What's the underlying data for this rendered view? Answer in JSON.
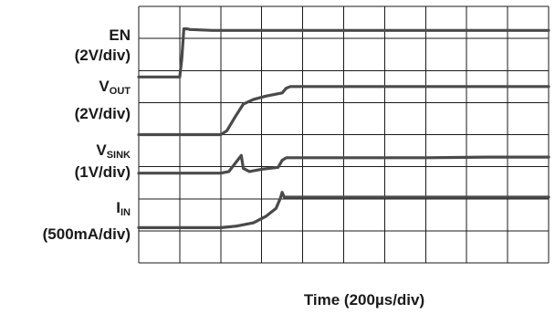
{
  "chart_data": {
    "type": "line",
    "xlabel": "Time (200µs/div)",
    "x_unit_per_div": "200µs",
    "divisions": {
      "x": 10,
      "y": 8
    },
    "grid": true,
    "series": [
      {
        "name_main": "EN",
        "name_sub": "",
        "scale": "(2V/div)",
        "points": [
          [
            0,
            0.0
          ],
          [
            1.0,
            0.0
          ],
          [
            1.05,
            0.55
          ],
          [
            1.1,
            1.5
          ],
          [
            1.18,
            1.5
          ],
          [
            1.25,
            1.48
          ],
          [
            1.8,
            1.45
          ],
          [
            10,
            1.45
          ]
        ]
      },
      {
        "name_main": "V",
        "name_sub": "OUT",
        "scale": "(2V/div)",
        "points": [
          [
            0,
            0.0
          ],
          [
            2.0,
            0.0
          ],
          [
            2.15,
            0.12
          ],
          [
            2.35,
            0.55
          ],
          [
            2.55,
            0.95
          ],
          [
            2.8,
            1.1
          ],
          [
            3.1,
            1.2
          ],
          [
            3.5,
            1.3
          ],
          [
            3.6,
            1.45
          ],
          [
            3.7,
            1.5
          ],
          [
            10,
            1.5
          ]
        ]
      },
      {
        "name_main": "V",
        "name_sub": "SINK",
        "scale": "(1V/div)",
        "points": [
          [
            0,
            0.0
          ],
          [
            2.0,
            0.0
          ],
          [
            2.2,
            0.05
          ],
          [
            2.35,
            0.3
          ],
          [
            2.5,
            0.55
          ],
          [
            2.55,
            0.15
          ],
          [
            2.7,
            0.05
          ],
          [
            3.0,
            0.12
          ],
          [
            3.4,
            0.18
          ],
          [
            3.5,
            0.4
          ],
          [
            3.6,
            0.48
          ],
          [
            7.0,
            0.48
          ],
          [
            8.5,
            0.5
          ],
          [
            10,
            0.5
          ]
        ]
      },
      {
        "name_main": "I",
        "name_sub": "IN",
        "scale": "(500mA/div)",
        "points": [
          [
            0,
            0.0
          ],
          [
            2.0,
            0.0
          ],
          [
            2.4,
            0.05
          ],
          [
            2.8,
            0.15
          ],
          [
            3.1,
            0.35
          ],
          [
            3.35,
            0.6
          ],
          [
            3.45,
            0.9
          ],
          [
            3.5,
            1.1
          ],
          [
            3.55,
            0.95
          ],
          [
            3.7,
            0.95
          ],
          [
            10,
            0.95
          ]
        ]
      }
    ]
  }
}
